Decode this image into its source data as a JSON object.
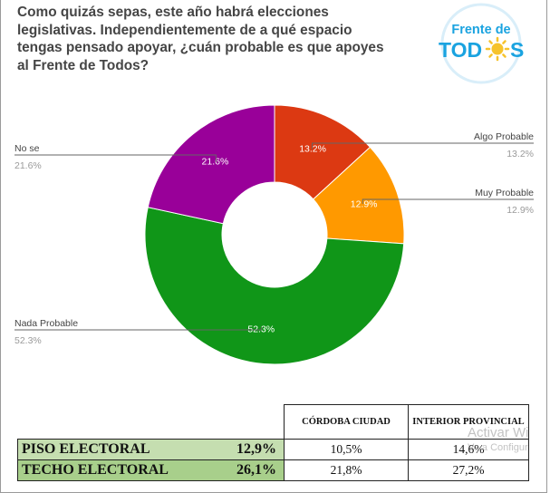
{
  "question": "Como quizás sepas, este año habrá elecciones\nlegislativas. Independientemente de a qué espacio\ntengas pensado apoyar, ¿cuán probable es que apoyes\nal Frente de Todos?",
  "logo": {
    "line1": "Frente de",
    "line2_left": "TOD",
    "line2_right": "S",
    "colors": {
      "blue": "#1aa3e0",
      "sun": "#f6c32d",
      "ring": "#d9eef9"
    }
  },
  "chart_data": {
    "type": "pie",
    "donut": true,
    "title": "",
    "slices": [
      {
        "label": "Algo Probable",
        "value": 13.2,
        "display": "13.2%",
        "color": "#dc3912"
      },
      {
        "label": "Muy Probable",
        "value": 12.9,
        "display": "12.9%",
        "color": "#ff9900"
      },
      {
        "label": "Nada Probable",
        "value": 52.3,
        "display": "52.3%",
        "color": "#109618"
      },
      {
        "label": "No se",
        "value": 21.6,
        "display": "21.6%",
        "color": "#990099"
      }
    ]
  },
  "table": {
    "headers": [
      "CÓRDOBA CIUDAD",
      "INTERIOR PROVINCIAL"
    ],
    "rows": [
      {
        "name": "PISO ELECTORAL",
        "value": "12,9%",
        "cells": [
          "10,5%",
          "14,6%"
        ]
      },
      {
        "name": "TECHO ELECTORAL",
        "value": "26,1%",
        "cells": [
          "21,8%",
          "27,2%"
        ]
      }
    ]
  },
  "watermark": {
    "line1": "Activar Wi",
    "line2": "Ve a Configur"
  }
}
